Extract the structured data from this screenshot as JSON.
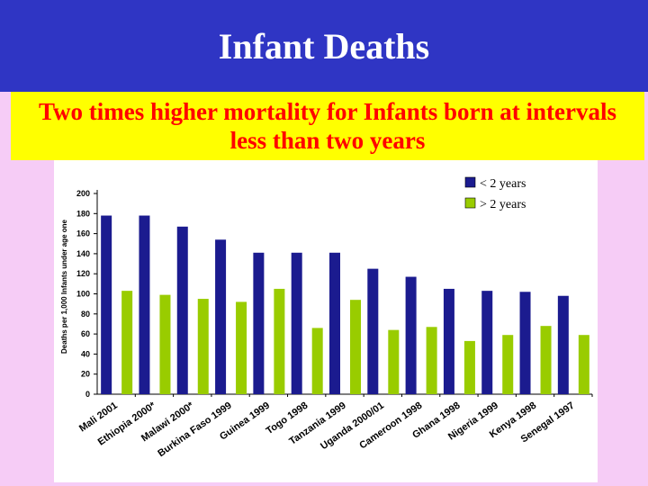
{
  "slide": {
    "title": "Infant Deaths",
    "subtitle": "Two times higher mortality for Infants born at intervals less than two years"
  },
  "colors": {
    "title_bg": "#2f35c4",
    "subtitle_bg": "#ffff00",
    "subtitle_text": "#ff0000",
    "page_bg": "#f6ccf6",
    "series_1": "#1b1b8f",
    "series_2": "#99cc00"
  },
  "chart_data": {
    "type": "bar",
    "title": "",
    "xlabel": "",
    "ylabel": "Deaths per 1,000 Infants under age one",
    "ylim": [
      0,
      200
    ],
    "yticks": [
      0,
      20,
      40,
      60,
      80,
      100,
      120,
      140,
      160,
      180,
      200
    ],
    "categories": [
      "Mali 2001",
      "Ethiopia 2000*",
      "Malawi 2000*",
      "Burkina Faso 1999",
      "Guinea 1999",
      "Togo 1998",
      "Tanzania 1999",
      "Uganda 2000/01",
      "Cameroon 1998",
      "Ghana 1998",
      "Nigeria 1999",
      "Kenya 1998",
      "Senegal 1997"
    ],
    "series": [
      {
        "name": "< 2 years",
        "values": [
          178,
          178,
          167,
          154,
          141,
          141,
          141,
          125,
          117,
          105,
          103,
          102,
          98
        ]
      },
      {
        "name": "> 2 years",
        "values": [
          103,
          99,
          95,
          92,
          105,
          66,
          94,
          64,
          67,
          53,
          59,
          68,
          59
        ]
      }
    ],
    "legend_position": "top-right"
  }
}
